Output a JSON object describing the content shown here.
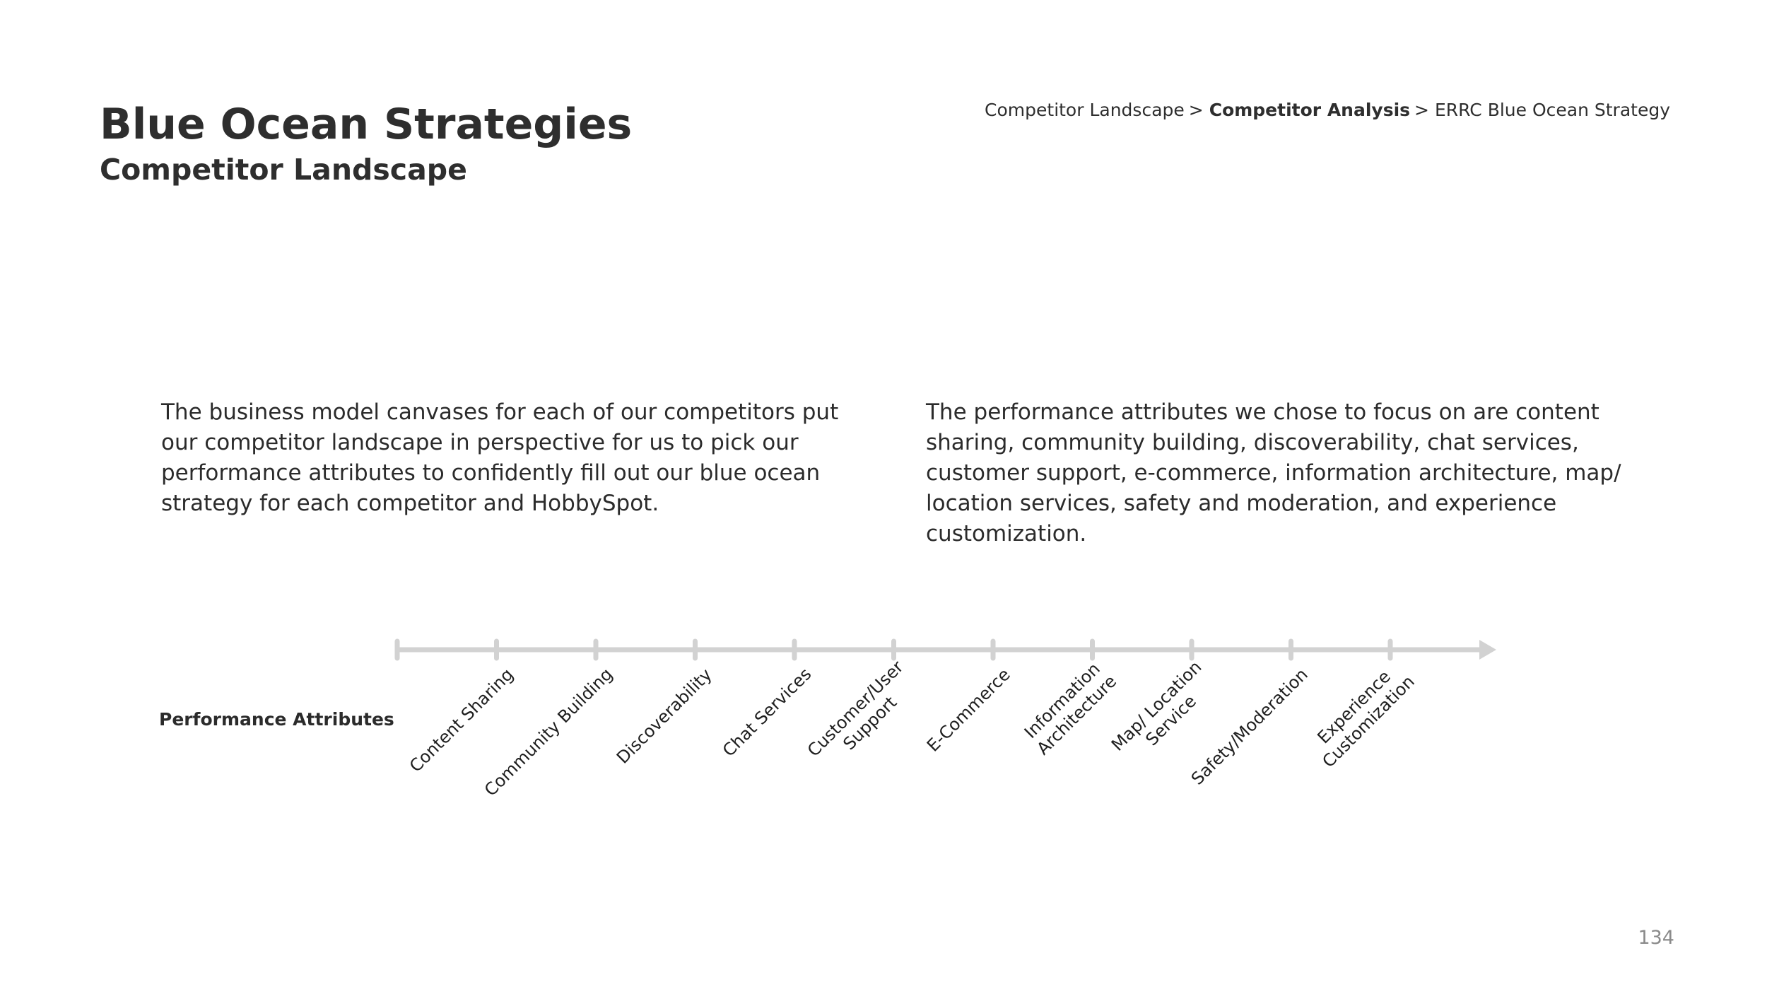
{
  "header": {
    "title": "Blue Ocean Strategies",
    "subtitle": "Competitor Landscape"
  },
  "breadcrumb": {
    "items": [
      "Competitor Landscape",
      "Competitor Analysis",
      "ERRC Blue Ocean Strategy"
    ],
    "separator": ">",
    "current_index": 1
  },
  "body": {
    "left_paragraph": "The business model canvases for each of our competitors put our competitor landscape in perspective for us to pick our performance attributes to confidently fill out our blue ocean strategy for each competitor and HobbySpot.",
    "right_paragraph": "The performance attributes we chose to focus on are content sharing, community building, discoverability, chat services, customer support, e-commerce, information architecture, map/ location services, safety and moderation, and experience customization."
  },
  "axis": {
    "label": "Performance Attributes",
    "color": "#d2d2d2",
    "attributes": [
      {
        "line1": "Content Sharing",
        "line2": ""
      },
      {
        "line1": "Community Building",
        "line2": ""
      },
      {
        "line1": "Discoverability",
        "line2": ""
      },
      {
        "line1": "Chat Services",
        "line2": ""
      },
      {
        "line1": "Customer/User",
        "line2": "Support"
      },
      {
        "line1": "E-Commerce",
        "line2": ""
      },
      {
        "line1": "Information",
        "line2": "Architecture"
      },
      {
        "line1": "Map/ Location",
        "line2": "Service"
      },
      {
        "line1": "Safety/Moderation",
        "line2": ""
      },
      {
        "line1": "Experience",
        "line2": "Customization"
      }
    ]
  },
  "footer": {
    "page_number": "134"
  }
}
